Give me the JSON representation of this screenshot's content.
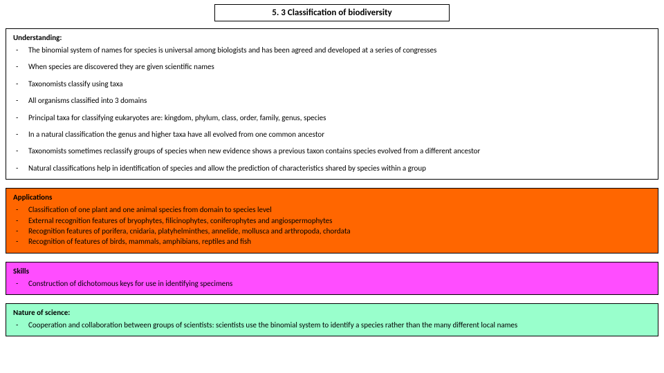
{
  "title": "5. 3 Classification of biodiversity",
  "sections": [
    {
      "heading": "Understanding:",
      "bg": "white",
      "spacing": "spaced",
      "items": [
        "The binomial system of names for species is universal among biologists and has been agreed and developed at a series of congresses",
        "When species are discovered they are given scientific names",
        "Taxonomists classify using taxa",
        "All organisms classified into 3 domains",
        "Principal taxa for classifying eukaryotes are: kingdom, phylum, class, order, family, genus, species",
        "In a natural classification the genus and higher taxa have all evolved from one common ancestor",
        "Taxonomists sometimes reclassify groups of species when new evidence shows a previous taxon contains species evolved from a different ancestor",
        "Natural classifications help in identification of species and allow the prediction of characteristics shared by species within a group"
      ]
    },
    {
      "heading": "Applications",
      "bg": "orange",
      "spacing": "tight",
      "items": [
        "Classification of one plant and one animal species from domain to species level",
        "External recognition features of bryophytes, filicinophytes, coniferophytes and angiospermophytes",
        "Recognition features of porifera, cnidaria, platyhelminthes, annelide, mollusca and arthropoda, chordata",
        "Recognition of features of birds, mammals, amphibians, reptiles and fish"
      ]
    },
    {
      "heading": "Skills",
      "bg": "magenta",
      "spacing": "tight",
      "items": [
        "Construction of dichotomous keys for use in identifying specimens"
      ]
    },
    {
      "heading": "Nature of science:",
      "bg": "green",
      "spacing": "tight",
      "items": [
        "Cooperation and collaboration between groups of scientists: scientists use the binomial system to identify a species rather than the many different local names"
      ]
    }
  ],
  "colors": {
    "white": "#ffffff",
    "orange": "#ff6600",
    "magenta": "#ff4dff",
    "green": "#99ffcc",
    "border": "#000000",
    "text": "#000000"
  }
}
